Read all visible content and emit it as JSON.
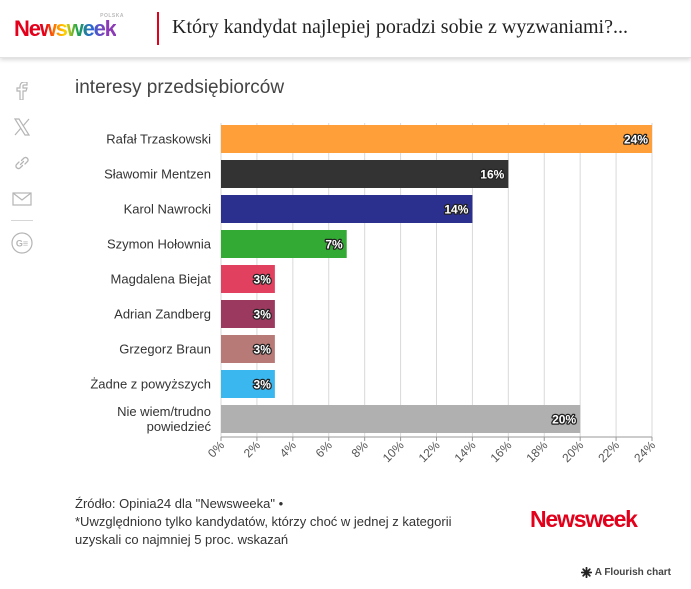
{
  "header": {
    "logo_text": "Newsweek",
    "logo_tagline": "POLSKA",
    "title": "Który kandydat najlepiej poradzi sobie z wyzwaniami?..."
  },
  "share": {
    "icons": [
      "facebook-icon",
      "x-twitter-icon",
      "link-icon",
      "mail-icon",
      "google-news-icon"
    ]
  },
  "chart_data": {
    "type": "bar",
    "orientation": "horizontal",
    "title": "interesy przedsiębiorców",
    "categories": [
      "Rafał Trzaskowski",
      "Sławomir Mentzen",
      "Karol Nawrocki",
      "Szymon Hołownia",
      "Magdalena Biejat",
      "Adrian Zandberg",
      "Grzegorz Braun",
      "Żadne z powyższych",
      "Nie wiem/trudno powiedzieć"
    ],
    "category_lines": [
      [
        "Rafał Trzaskowski"
      ],
      [
        "Sławomir Mentzen"
      ],
      [
        "Karol Nawrocki"
      ],
      [
        "Szymon Hołownia"
      ],
      [
        "Magdalena Biejat"
      ],
      [
        "Adrian Zandberg"
      ],
      [
        "Grzegorz Braun"
      ],
      [
        "Żadne z powyższych"
      ],
      [
        "Nie wiem/trudno",
        "powiedzieć"
      ]
    ],
    "values": [
      24,
      16,
      14,
      7,
      3,
      3,
      3,
      3,
      20
    ],
    "value_labels": [
      "24%",
      "16%",
      "14%",
      "7%",
      "3%",
      "3%",
      "3%",
      "3%",
      "20%"
    ],
    "colors": [
      "#ff9f3a",
      "#333333",
      "#2b2f8e",
      "#33aa33",
      "#e2405f",
      "#9b3a5e",
      "#b87a76",
      "#3ab7ee",
      "#b0b0b0"
    ],
    "xlim": [
      0,
      24
    ],
    "xticks": [
      0,
      2,
      4,
      6,
      8,
      10,
      12,
      14,
      16,
      18,
      20,
      22,
      24
    ],
    "xtick_labels": [
      "0%",
      "2%",
      "4%",
      "6%",
      "8%",
      "10%",
      "12%",
      "14%",
      "16%",
      "18%",
      "20%",
      "22%",
      "24%"
    ],
    "grid": true
  },
  "footer": {
    "source_line1": "Źródło: Opinia24 dla \"Newsweeka\" •",
    "source_line2": "*Uwzględniono tylko kandydatów, którzy choć w jednej z kategorii",
    "source_line3": "uzyskali co najmniej 5 proc. wskazań",
    "logo_text": "Newsweek",
    "flourish_label": "A Flourish chart"
  }
}
